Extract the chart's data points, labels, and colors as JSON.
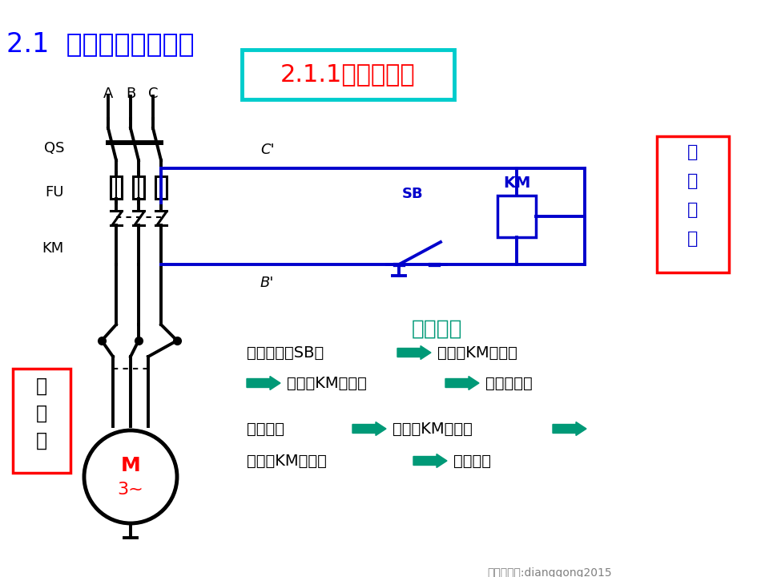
{
  "title": "2.1  异步机的直接起动",
  "subtitle": "2.1.1、点动控制",
  "bg_color": "#ffffff",
  "title_color": "#0000ff",
  "subtitle_color": "#ff0000",
  "subtitle_box_color": "#00cccc",
  "black": "#000000",
  "blue": "#0000cc",
  "red": "#ff0000",
  "green": "#009977",
  "label_A": "A",
  "label_B": "B",
  "label_C": "C",
  "label_QS": "QS",
  "label_FU": "FU",
  "label_KM": "KM",
  "label_SB": "SB",
  "label_Cp": "C'",
  "label_Bp": "B'",
  "label_M": "M",
  "label_3": "3~",
  "label_ctrl": "控制电路",
  "label_main": "主电路",
  "text1": "动作过程",
  "text2": "按下按鈕（SB）",
  "text3": "线圈（KM）通电",
  "text4": "触头（KM）闭合",
  "text5": "电机转动；",
  "text6": "按鈕松开",
  "text7": "线圈（KM）断电",
  "text8": "触头（KM）打开",
  "text9": "电机停转",
  "watermark": "微信公众号:dianggong2015"
}
